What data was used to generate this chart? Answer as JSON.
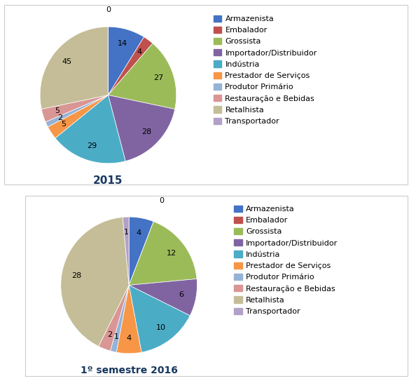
{
  "chart1": {
    "title": "2015",
    "values": [
      14,
      4,
      27,
      28,
      29,
      5,
      2,
      5,
      45,
      0
    ],
    "labels": [
      "Armazenista",
      "Embalador",
      "Grossista",
      "Importador/Distribuidor",
      "Indústria",
      "Prestador de Serviços",
      "Produtor Primário",
      "Restauração e Bebidas",
      "Retalhista",
      "Transportador"
    ]
  },
  "chart2": {
    "title": "1º semestre 2016",
    "values": [
      4,
      0,
      12,
      6,
      10,
      4,
      1,
      2,
      28,
      1
    ],
    "labels": [
      "Armazenista",
      "Embalador",
      "Grossista",
      "Importador/Distribuidor",
      "Indústria",
      "Prestador de Serviços",
      "Produtor Primário",
      "Restauração e Bebidas",
      "Retalhista",
      "Transportador"
    ]
  },
  "colors": [
    "#4472C4",
    "#C0504D",
    "#9BBB59",
    "#8064A2",
    "#4BACC6",
    "#F79646",
    "#95B3D7",
    "#D99694",
    "#C4BD97",
    "#B2A1C7"
  ],
  "bg_color": "#FFFFFF"
}
